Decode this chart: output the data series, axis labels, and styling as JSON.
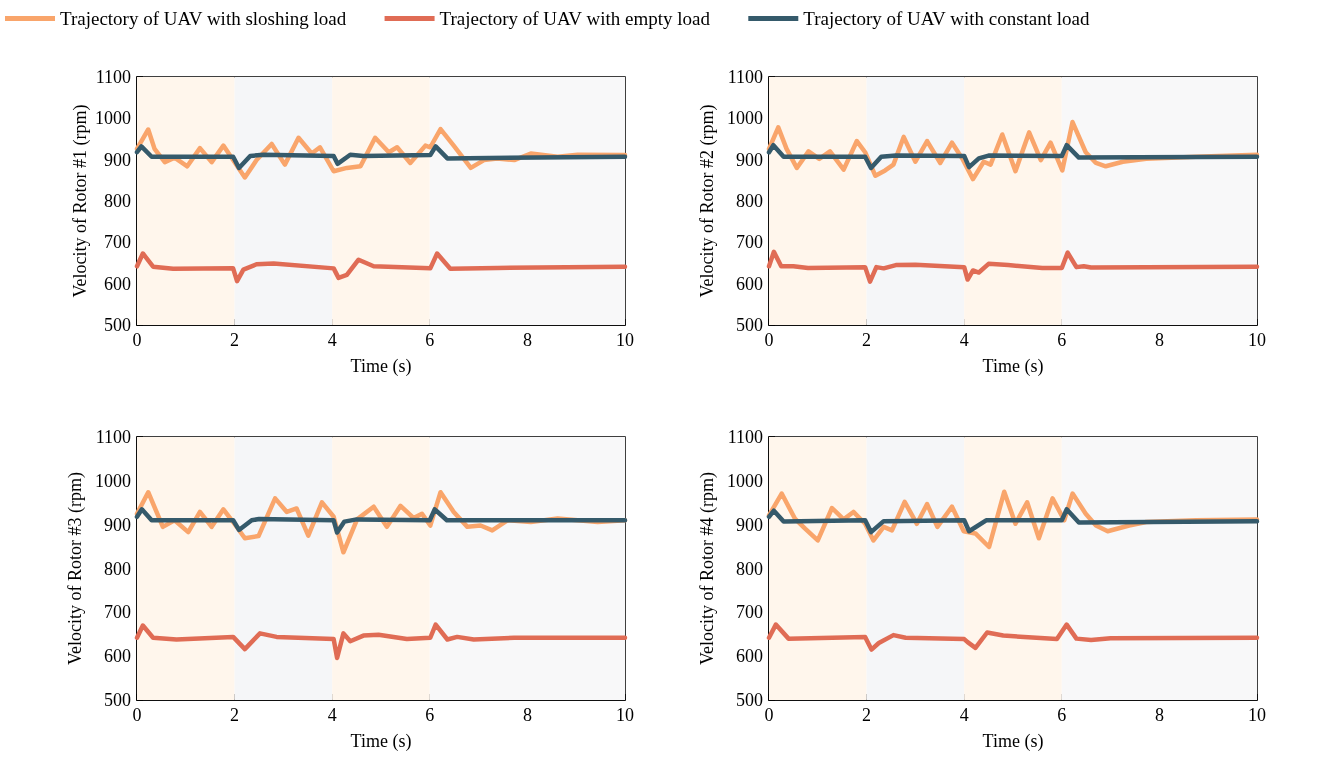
{
  "chart_data": [
    {
      "type": "line",
      "xlabel": "Time (s)",
      "ylabel": "Velocity of Rotor #1 (rpm)",
      "xlim": [
        0,
        10
      ],
      "xticks": [
        0,
        2,
        4,
        6,
        8,
        10
      ],
      "ylim": [
        500,
        1100
      ],
      "yticks": [
        500,
        600,
        700,
        800,
        900,
        1000,
        1100
      ],
      "legend": "top",
      "line_style": "solid",
      "marker": "none",
      "bands": [
        {
          "axis": "x",
          "from": 0,
          "to": 2,
          "color": "#fff6ec"
        },
        {
          "axis": "x",
          "from": 2,
          "to": 4,
          "color": "#f5f6f8"
        },
        {
          "axis": "x",
          "from": 4,
          "to": 6,
          "color": "#fff6ec"
        },
        {
          "axis": "x",
          "from": 6,
          "to": 10,
          "color": "#f8f8f9"
        }
      ],
      "series": [
        {
          "name": "Trajectory of UAV with sloshing load",
          "color": "#f9a56b",
          "x": [
            0,
            0.23,
            0.36,
            0.57,
            0.77,
            1.03,
            1.29,
            1.53,
            1.77,
            1.97,
            2.21,
            2.45,
            2.76,
            3.03,
            3.31,
            3.58,
            3.75,
            4.03,
            4.3,
            4.58,
            4.88,
            5.16,
            5.33,
            5.6,
            5.91,
            6.01,
            6.22,
            6.49,
            6.84,
            7.11,
            7.38,
            7.73,
            8.07,
            8.62,
            9.03,
            10
          ],
          "values": [
            926,
            973,
            926,
            894,
            905,
            884,
            928,
            894,
            934,
            899,
            857,
            899,
            938,
            888,
            953,
            915,
            930,
            872,
            880,
            884,
            953,
            918,
            930,
            892,
            934,
            930,
            974,
            934,
            880,
            899,
            903,
            899,
            915,
            907,
            912,
            911
          ]
        },
        {
          "name": "Trajectory of UAV with empty load",
          "color": "#e06c55",
          "x": [
            0,
            0.12,
            0.33,
            0.74,
            1.97,
            2.05,
            2.18,
            2.45,
            2.8,
            4.03,
            4.13,
            4.3,
            4.54,
            4.85,
            6.01,
            6.15,
            6.42,
            7.38,
            10
          ],
          "values": [
            642,
            673,
            641,
            636,
            637,
            606,
            634,
            647,
            649,
            637,
            614,
            621,
            658,
            642,
            637,
            673,
            636,
            638,
            641
          ]
        },
        {
          "name": "Trajectory of UAV with constant load",
          "color": "#355a6b",
          "x": [
            0,
            0.09,
            0.3,
            1.97,
            2.09,
            2.32,
            2.59,
            4.03,
            4.11,
            4.37,
            4.64,
            6.01,
            6.12,
            6.36,
            10
          ],
          "values": [
            918,
            932,
            907,
            907,
            880,
            909,
            912,
            909,
            890,
            912,
            909,
            911,
            932,
            903,
            907
          ]
        }
      ]
    },
    {
      "type": "line",
      "xlabel": "Time (s)",
      "ylabel": "Velocity of Rotor #2 (rpm)",
      "xlim": [
        0,
        10
      ],
      "xticks": [
        0,
        2,
        4,
        6,
        8,
        10
      ],
      "ylim": [
        500,
        1100
      ],
      "yticks": [
        500,
        600,
        700,
        800,
        900,
        1000,
        1100
      ],
      "line_style": "solid",
      "marker": "none",
      "bands": [
        {
          "axis": "x",
          "from": 0,
          "to": 2,
          "color": "#fff6ec"
        },
        {
          "axis": "x",
          "from": 2,
          "to": 4,
          "color": "#f5f6f8"
        },
        {
          "axis": "x",
          "from": 4,
          "to": 6,
          "color": "#fff6ec"
        },
        {
          "axis": "x",
          "from": 6,
          "to": 10,
          "color": "#f8f8f9"
        }
      ],
      "series": [
        {
          "color": "#f9a56b",
          "x": [
            0,
            0.19,
            0.36,
            0.57,
            0.81,
            1.03,
            1.25,
            1.53,
            1.8,
            1.97,
            2.18,
            2.38,
            2.55,
            2.76,
            3.0,
            3.24,
            3.51,
            3.75,
            3.96,
            4.18,
            4.4,
            4.54,
            4.78,
            5.05,
            5.33,
            5.57,
            5.77,
            6.01,
            6.22,
            6.49,
            6.7,
            6.9,
            7.25,
            7.73,
            8.75,
            10
          ],
          "values": [
            926,
            978,
            926,
            880,
            920,
            902,
            920,
            876,
            945,
            918,
            861,
            874,
            888,
            955,
            895,
            945,
            892,
            941,
            903,
            853,
            895,
            888,
            961,
            872,
            966,
            899,
            941,
            874,
            991,
            918,
            892,
            884,
            895,
            902,
            907,
            912
          ]
        },
        {
          "color": "#e06c55",
          "x": [
            0,
            0.1,
            0.25,
            0.5,
            0.8,
            1.97,
            2.07,
            2.2,
            2.35,
            2.6,
            3.0,
            4.0,
            4.07,
            4.18,
            4.3,
            4.5,
            4.9,
            5.6,
            6.0,
            6.12,
            6.3,
            6.45,
            6.6,
            10
          ],
          "values": [
            642,
            677,
            642,
            642,
            638,
            640,
            605,
            640,
            637,
            645,
            646,
            640,
            610,
            632,
            627,
            648,
            645,
            638,
            638,
            675,
            640,
            642,
            639,
            641
          ]
        },
        {
          "color": "#355a6b",
          "x": [
            0,
            0.09,
            0.3,
            1.97,
            2.09,
            2.3,
            2.6,
            4.0,
            4.1,
            4.3,
            4.5,
            6.0,
            6.1,
            6.35,
            10
          ],
          "values": [
            918,
            935,
            907,
            907,
            880,
            907,
            910,
            909,
            882,
            903,
            910,
            909,
            935,
            905,
            907
          ]
        }
      ]
    },
    {
      "type": "line",
      "xlabel": "Time (s)",
      "ylabel": "Velocity of Rotor #3 (rpm)",
      "xlim": [
        0,
        10
      ],
      "xticks": [
        0,
        2,
        4,
        6,
        8,
        10
      ],
      "ylim": [
        500,
        1100
      ],
      "yticks": [
        500,
        600,
        700,
        800,
        900,
        1000,
        1100
      ],
      "line_style": "solid",
      "marker": "none",
      "bands": [
        {
          "axis": "x",
          "from": 0,
          "to": 2,
          "color": "#fff6ec"
        },
        {
          "axis": "x",
          "from": 2,
          "to": 4,
          "color": "#f5f6f8"
        },
        {
          "axis": "x",
          "from": 4,
          "to": 6,
          "color": "#fff6ec"
        },
        {
          "axis": "x",
          "from": 6,
          "to": 10,
          "color": "#f8f8f9"
        }
      ],
      "series": [
        {
          "color": "#f9a56b",
          "x": [
            0,
            0.23,
            0.53,
            0.77,
            1.05,
            1.29,
            1.53,
            1.77,
            1.97,
            2.21,
            2.49,
            2.83,
            3.07,
            3.27,
            3.51,
            3.79,
            4.03,
            4.23,
            4.51,
            4.85,
            5.12,
            5.4,
            5.67,
            5.84,
            6.01,
            6.22,
            6.49,
            6.77,
            7.04,
            7.28,
            7.59,
            8.07,
            8.62,
            9.44,
            10
          ],
          "values": [
            925,
            974,
            895,
            910,
            883,
            929,
            895,
            935,
            906,
            869,
            874,
            960,
            929,
            937,
            875,
            951,
            918,
            837,
            912,
            941,
            895,
            943,
            915,
            925,
            898,
            974,
            929,
            895,
            898,
            887,
            910,
            906,
            914,
            906,
            910
          ]
        },
        {
          "color": "#e06c55",
          "x": [
            0,
            0.12,
            0.33,
            0.81,
            1.97,
            2.21,
            2.52,
            2.86,
            4.03,
            4.1,
            4.23,
            4.37,
            4.64,
            4.95,
            5.53,
            6.01,
            6.12,
            6.36,
            6.56,
            6.9,
            7.73,
            10
          ],
          "values": [
            642,
            670,
            642,
            638,
            644,
            616,
            652,
            644,
            639,
            596,
            652,
            634,
            647,
            649,
            639,
            642,
            672,
            638,
            644,
            638,
            642,
            642
          ]
        },
        {
          "color": "#355a6b",
          "x": [
            0,
            0.1,
            0.3,
            1.97,
            2.09,
            2.35,
            2.5,
            4.03,
            4.1,
            4.25,
            4.5,
            6.0,
            6.1,
            6.35,
            10
          ],
          "values": [
            918,
            935,
            910,
            910,
            888,
            910,
            913,
            910,
            882,
            907,
            912,
            910,
            935,
            910,
            910
          ]
        }
      ]
    },
    {
      "type": "line",
      "xlabel": "Time (s)",
      "ylabel": "Velocity of Rotor #4 (rpm)",
      "xlim": [
        0,
        10
      ],
      "xticks": [
        0,
        2,
        4,
        6,
        8,
        10
      ],
      "ylim": [
        500,
        1100
      ],
      "yticks": [
        500,
        600,
        700,
        800,
        900,
        1000,
        1100
      ],
      "line_style": "solid",
      "marker": "none",
      "bands": [
        {
          "axis": "x",
          "from": 0,
          "to": 2,
          "color": "#fff6ec"
        },
        {
          "axis": "x",
          "from": 2,
          "to": 4,
          "color": "#f5f6f8"
        },
        {
          "axis": "x",
          "from": 4,
          "to": 6,
          "color": "#fff6ec"
        },
        {
          "axis": "x",
          "from": 6,
          "to": 10,
          "color": "#f8f8f9"
        }
      ],
      "series": [
        {
          "color": "#f9a56b",
          "x": [
            0,
            0.26,
            0.53,
            0.74,
            1.0,
            1.29,
            1.53,
            1.73,
            1.97,
            2.14,
            2.35,
            2.52,
            2.78,
            3.03,
            3.24,
            3.45,
            3.75,
            3.99,
            4.23,
            4.51,
            4.82,
            5.05,
            5.29,
            5.53,
            5.81,
            6.05,
            6.22,
            6.49,
            6.7,
            6.94,
            7.38,
            7.73,
            8.75,
            10
          ],
          "values": [
            921,
            971,
            914,
            891,
            864,
            938,
            912,
            929,
            902,
            864,
            895,
            887,
            952,
            902,
            947,
            895,
            941,
            885,
            880,
            849,
            975,
            902,
            951,
            869,
            960,
            910,
            971,
            925,
            898,
            885,
            898,
            906,
            910,
            912
          ]
        },
        {
          "color": "#e06c55",
          "x": [
            0,
            0.14,
            0.4,
            1.97,
            2.1,
            2.25,
            2.55,
            2.8,
            4.0,
            4.07,
            4.23,
            4.47,
            4.8,
            5.9,
            6.1,
            6.3,
            6.6,
            7.0,
            10
          ],
          "values": [
            642,
            672,
            640,
            644,
            615,
            630,
            648,
            642,
            639,
            632,
            619,
            654,
            647,
            639,
            672,
            640,
            637,
            641,
            642
          ]
        },
        {
          "color": "#355a6b",
          "x": [
            0,
            0.1,
            0.3,
            1.97,
            2.09,
            2.35,
            4.0,
            4.1,
            4.45,
            6.0,
            6.1,
            6.35,
            10
          ],
          "values": [
            918,
            932,
            907,
            910,
            883,
            908,
            910,
            885,
            910,
            910,
            935,
            905,
            908
          ]
        }
      ]
    }
  ]
}
